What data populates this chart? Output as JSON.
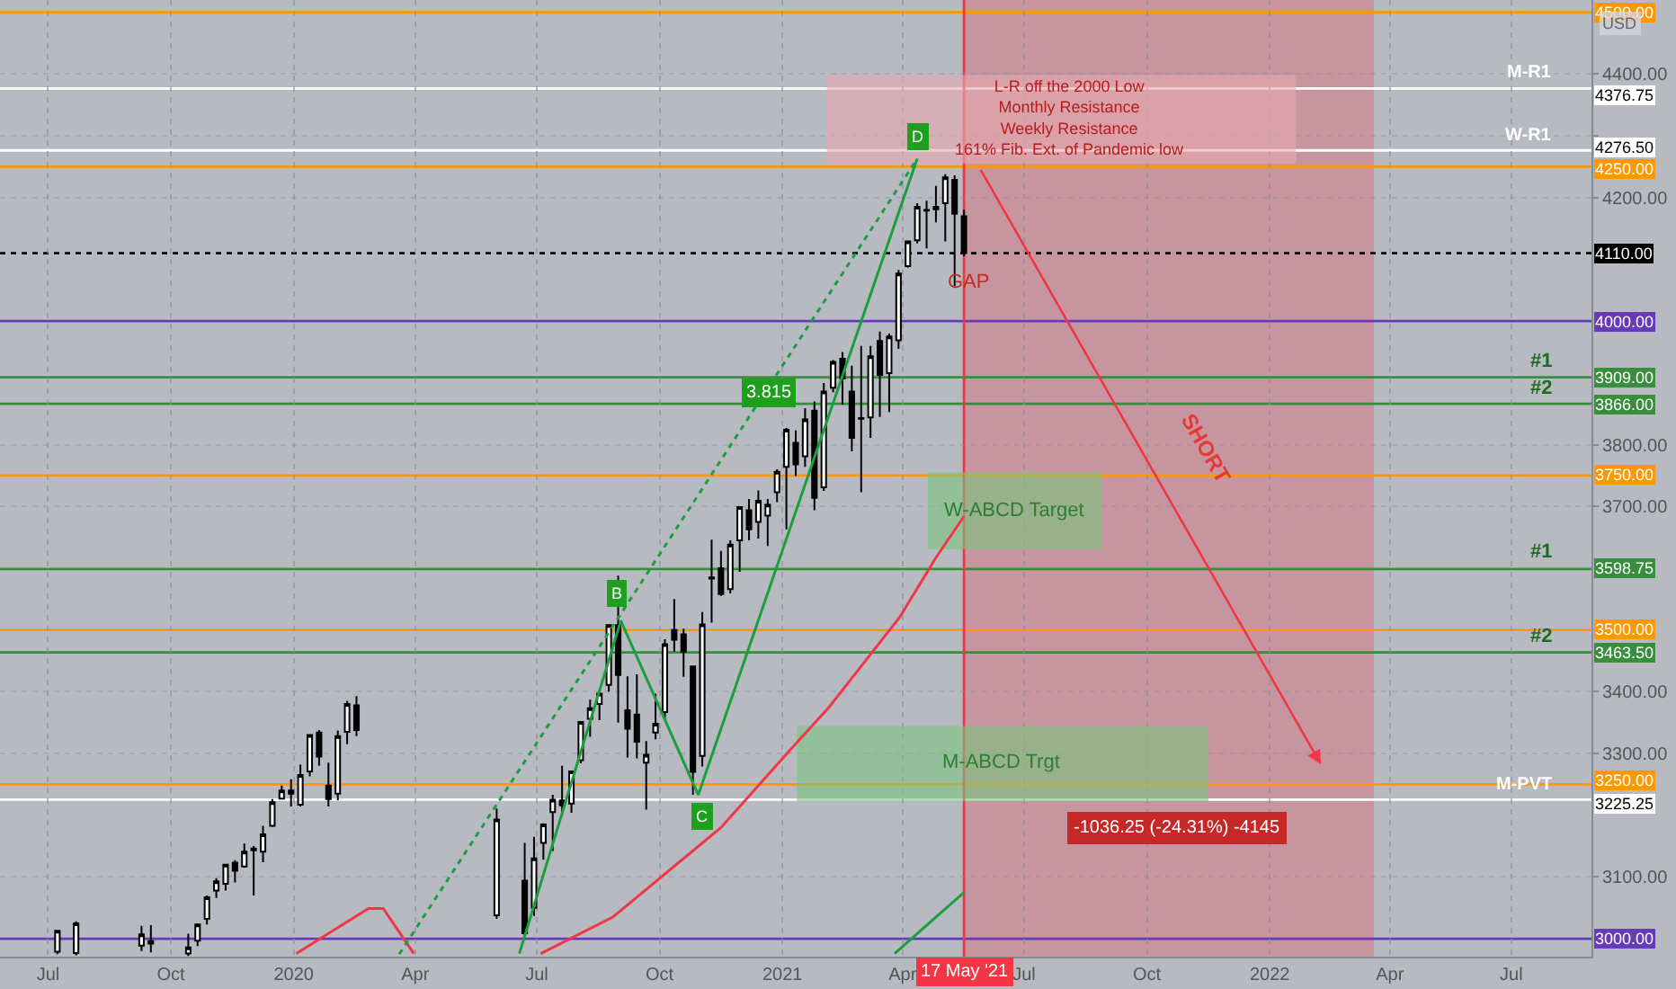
{
  "chart_data": {
    "type": "candlestick",
    "x": [
      "2019-07-08",
      "2019-07-22",
      "2019-09-09",
      "2019-09-16",
      "2019-10-14",
      "2019-10-21",
      "2019-10-28",
      "2019-11-04",
      "2019-11-11",
      "2019-11-18",
      "2019-11-25",
      "2019-12-02",
      "2019-12-09",
      "2019-12-16",
      "2019-12-23",
      "2019-12-30",
      "2020-01-06",
      "2020-01-13",
      "2020-01-20",
      "2020-01-27",
      "2020-02-03",
      "2020-02-10",
      "2020-02-17",
      "2020-06-01",
      "2020-06-22",
      "2020-06-29",
      "2020-07-06",
      "2020-07-13",
      "2020-07-20",
      "2020-07-27",
      "2020-08-03",
      "2020-08-10",
      "2020-08-17",
      "2020-08-24",
      "2020-08-31",
      "2020-09-07",
      "2020-09-14",
      "2020-09-21",
      "2020-09-28",
      "2020-10-05",
      "2020-10-12",
      "2020-10-19",
      "2020-10-26",
      "2020-11-02",
      "2020-11-09",
      "2020-11-16",
      "2020-11-23",
      "2020-11-30",
      "2020-12-07",
      "2020-12-14",
      "2020-12-21",
      "2020-12-28",
      "2021-01-04",
      "2021-01-11",
      "2021-01-18",
      "2021-01-25",
      "2021-02-01",
      "2021-02-08",
      "2021-02-15",
      "2021-02-22",
      "2021-03-01",
      "2021-03-08",
      "2021-03-15",
      "2021-03-22",
      "2021-03-29",
      "2021-04-05",
      "2021-04-12",
      "2021-04-19",
      "2021-04-26",
      "2021-05-03",
      "2021-05-10",
      "2021-05-17"
    ],
    "ohlc": [
      [
        2979,
        3014,
        2975,
        3013
      ],
      [
        2977,
        3028,
        2973,
        3025
      ],
      [
        2989,
        3021,
        2980,
        3007
      ],
      [
        2996,
        3022,
        2978,
        2992
      ],
      [
        2976,
        3008,
        2972,
        2986
      ],
      [
        2997,
        3025,
        2988,
        3023
      ],
      [
        3032,
        3070,
        3023,
        3067
      ],
      [
        3078,
        3098,
        3066,
        3093
      ],
      [
        3089,
        3121,
        3078,
        3120
      ],
      [
        3123,
        3127,
        3091,
        3110
      ],
      [
        3117,
        3154,
        3115,
        3141
      ],
      [
        3143,
        3150,
        3070,
        3146
      ],
      [
        3141,
        3183,
        3124,
        3169
      ],
      [
        3183,
        3226,
        3181,
        3221
      ],
      [
        3227,
        3248,
        3226,
        3240
      ],
      [
        3240,
        3258,
        3214,
        3235
      ],
      [
        3217,
        3282,
        3214,
        3265
      ],
      [
        3271,
        3330,
        3263,
        3330
      ],
      [
        3334,
        3338,
        3280,
        3295
      ],
      [
        3248,
        3285,
        3214,
        3226
      ],
      [
        3235,
        3337,
        3224,
        3328
      ],
      [
        3335,
        3385,
        3315,
        3380
      ],
      [
        3378,
        3393,
        3328,
        3338
      ],
      [
        3038,
        3211,
        3032,
        3193
      ],
      [
        3094,
        3155,
        3004,
        3009
      ],
      [
        3050,
        3165,
        3037,
        3130
      ],
      [
        3155,
        3187,
        3128,
        3185
      ],
      [
        3205,
        3233,
        3142,
        3225
      ],
      [
        3224,
        3280,
        3199,
        3216
      ],
      [
        3219,
        3272,
        3204,
        3271
      ],
      [
        3289,
        3352,
        3284,
        3351
      ],
      [
        3356,
        3387,
        3327,
        3373
      ],
      [
        3380,
        3399,
        3354,
        3397
      ],
      [
        3411,
        3509,
        3400,
        3508
      ],
      [
        3508,
        3588,
        3350,
        3427
      ],
      [
        3370,
        3425,
        3293,
        3340
      ],
      [
        3363,
        3428,
        3292,
        3319
      ],
      [
        3285,
        3320,
        3209,
        3298
      ],
      [
        3334,
        3397,
        3323,
        3348
      ],
      [
        3367,
        3485,
        3354,
        3477
      ],
      [
        3500,
        3550,
        3465,
        3484
      ],
      [
        3493,
        3502,
        3424,
        3465
      ],
      [
        3441,
        3441,
        3233,
        3270
      ],
      [
        3296,
        3529,
        3279,
        3509
      ],
      [
        3583,
        3646,
        3512,
        3585
      ],
      [
        3600,
        3628,
        3555,
        3558
      ],
      [
        3566,
        3645,
        3559,
        3638
      ],
      [
        3645,
        3699,
        3594,
        3699
      ],
      [
        3694,
        3712,
        3645,
        3663
      ],
      [
        3675,
        3726,
        3648,
        3709
      ],
      [
        3685,
        3712,
        3636,
        3703
      ],
      [
        3723,
        3760,
        3707,
        3756
      ],
      [
        3764,
        3827,
        3663,
        3824
      ],
      [
        3803,
        3823,
        3749,
        3768
      ],
      [
        3781,
        3859,
        3764,
        3841
      ],
      [
        3855,
        3870,
        3694,
        3714
      ],
      [
        3731,
        3900,
        3725,
        3886
      ],
      [
        3892,
        3937,
        3885,
        3934
      ],
      [
        3939,
        3950,
        3865,
        3907
      ],
      [
        3886,
        3928,
        3789,
        3811
      ],
      [
        3843,
        3960,
        3723,
        3842
      ],
      [
        3844,
        3960,
        3811,
        3943
      ],
      [
        3968,
        3983,
        3845,
        3913
      ],
      [
        3916,
        3980,
        3853,
        3975
      ],
      [
        3969,
        4083,
        3955,
        4077
      ],
      [
        4089,
        4129,
        4087,
        4129
      ],
      [
        4131,
        4191,
        4126,
        4185
      ],
      [
        4179,
        4195,
        4118,
        4180
      ],
      [
        4185,
        4219,
        4160,
        4181
      ],
      [
        4191,
        4238,
        4129,
        4233
      ],
      [
        4229,
        4236,
        4057,
        4174
      ],
      [
        4170,
        4180,
        4105,
        4110
      ]
    ],
    "series": [
      {
        "type": "line",
        "color": "#f23645",
        "x": [
          "2020-01-03",
          "2020-02-26",
          "2020-03-08",
          "2020-03-31"
        ],
        "values": [
          2976,
          3049,
          3049,
          2976
        ]
      },
      {
        "type": "line",
        "color": "#f23645",
        "x": [
          "2020-07-04",
          "2020-08-27",
          "2020-11-16",
          "2021-01-09",
          "2021-02-05",
          "2021-03-30",
          "2021-04-26",
          "2021-05-17"
        ],
        "values": [
          2976,
          3035,
          3180,
          3311,
          3375,
          3521,
          3617,
          3684
        ]
      },
      {
        "type": "line",
        "color": "#1b9e3e",
        "x": [
          "2021-03-26",
          "2021-05-17"
        ],
        "values": [
          2976,
          3075
        ]
      },
      {
        "type": "line",
        "color": "#1b9e3e",
        "x": [
          "2020-06-18",
          "2020-09-02",
          "2020-10-30",
          "2021-04-12"
        ],
        "values": [
          2976,
          3515,
          3233,
          4263
        ]
      },
      {
        "type": "line",
        "color": "#1b9e3e",
        "line_style": "dotted",
        "x": [
          "2020-03-20",
          "2021-04-12"
        ],
        "values": [
          2975,
          4263
        ]
      },
      {
        "type": "bar",
        "color": "#e9a9b0",
        "x": [
          "2021-07-29"
        ],
        "base": [
          4257
        ],
        "values": [
          140
        ]
      },
      {
        "type": "bar",
        "color": "#7cc47f",
        "x": [
          "2021-06-15"
        ],
        "base": [
          3224
        ],
        "values": [
          119
        ]
      },
      {
        "type": "bar",
        "color": "#7cc47f",
        "x": [
          "2021-06-24"
        ],
        "base": [
          3632
        ],
        "values": [
          122
        ]
      }
    ],
    "xlim": [
      "2019-05-26",
      "2022-08-30"
    ],
    "xticks": [
      {
        "value": "2019-07-01",
        "label": "Jul"
      },
      {
        "value": "2019-10-01",
        "label": "Oct"
      },
      {
        "value": "2020-01-01",
        "label": "2020"
      },
      {
        "value": "2020-04-01",
        "label": "Apr"
      },
      {
        "value": "2020-07-01",
        "label": "Jul"
      },
      {
        "value": "2020-10-01",
        "label": "Oct"
      },
      {
        "value": "2021-01-01",
        "label": "2021"
      },
      {
        "value": "2021-04-01",
        "label": "Apr"
      },
      {
        "value": "2021-07-01",
        "label": "Jul"
      },
      {
        "value": "2021-10-01",
        "label": "Oct"
      },
      {
        "value": "2022-01-01",
        "label": "2022"
      },
      {
        "value": "2022-04-01",
        "label": "Apr"
      },
      {
        "value": "2022-07-01",
        "label": "Jul"
      }
    ],
    "ylim": [
      2971,
      4520
    ],
    "yticks": [
      {
        "value": 3100,
        "label": "3100.00"
      },
      {
        "value": 3300,
        "label": "3300.00"
      },
      {
        "value": 3400,
        "label": "3400.00"
      },
      {
        "value": 3700,
        "label": "3700.00"
      },
      {
        "value": 3800,
        "label": "3800.00"
      },
      {
        "value": 4200,
        "label": "4200.00"
      },
      {
        "value": 4300,
        "label": null
      },
      {
        "value": 4400,
        "label": "4400.00"
      }
    ],
    "grid": true,
    "ref_lines": [
      {
        "axis": "y",
        "value": 4500,
        "label": "4500.00",
        "color": "#ff9800"
      },
      {
        "axis": "y",
        "value": 4376.75,
        "label": "4376.75",
        "color": "#ffffff"
      },
      {
        "axis": "y",
        "value": 4276.5,
        "label": "4276.50",
        "color": "#ffffff"
      },
      {
        "axis": "y",
        "value": 4250,
        "label": "4250.00",
        "color": "#ff9800"
      },
      {
        "axis": "y",
        "value": 4110,
        "label": "4110.00",
        "color": "#000000",
        "line_style": "dotted"
      },
      {
        "axis": "y",
        "value": 4000,
        "label": "4000.00",
        "color": "#673ab7"
      },
      {
        "axis": "y",
        "value": 3909,
        "label": "3909.00",
        "color": "#388e3c"
      },
      {
        "axis": "y",
        "value": 3866,
        "label": "3866.00",
        "color": "#388e3c"
      },
      {
        "axis": "y",
        "value": 3750,
        "label": "3750.00",
        "color": "#ff9800"
      },
      {
        "axis": "y",
        "value": 3598.75,
        "label": "3598.75",
        "color": "#388e3c"
      },
      {
        "axis": "y",
        "value": 3500,
        "label": "3500.00",
        "color": "#ff9800"
      },
      {
        "axis": "y",
        "value": 3463.5,
        "label": "3463.50",
        "color": "#388e3c"
      },
      {
        "axis": "y",
        "value": 3250,
        "label": "3250.00",
        "color": "#ff9800"
      },
      {
        "axis": "y",
        "value": 3225.25,
        "label": "3225.25",
        "color": "#ffffff"
      },
      {
        "axis": "y",
        "value": 3000,
        "label": "3000.00",
        "color": "#673ab7"
      },
      {
        "axis": "x",
        "value": "2021-05-17",
        "label": "17 May '21",
        "color": "#f23645"
      }
    ],
    "bands": [
      {
        "axis": "x",
        "from": "2021-05-17",
        "to": "2022-03-20",
        "color": "#f23645"
      }
    ],
    "annotations": [
      "L-R off the 2000 Low\nMonthly Resistance\nWeekly Resistance\n161% Fib. Ext. of Pandemic low",
      {
        "text": "GAP",
        "x": "2021-05-20",
        "y": 4062
      },
      "SHORT",
      "W-ABCD Target",
      "M-ABCD Trgt",
      "-1036.25 (-24.31%) -4145",
      {
        "text": "3.815",
        "x": "2020-12-22",
        "y": 3885
      },
      {
        "text": "B",
        "x": "2020-08-30",
        "y": 3530
      },
      {
        "text": "C",
        "x": "2020-11-02",
        "y": 3215
      },
      {
        "text": "D",
        "x": "2021-04-12",
        "y": 4263
      },
      {
        "text": "M-R1",
        "x": "2022-08-03",
        "y": 4376.75
      },
      {
        "text": "W-R1",
        "x": "2022-08-03",
        "y": 4276.5
      },
      {
        "text": "#1",
        "x": "2022-08-03",
        "y": 3909
      },
      {
        "text": "#2",
        "x": "2022-08-03",
        "y": 3866
      },
      {
        "text": "#1",
        "x": "2022-08-03",
        "y": 3598.75
      },
      {
        "text": "#2",
        "x": "2022-08-03",
        "y": 3463.5
      },
      {
        "text": "M-PVT",
        "x": "2022-08-03",
        "y": 3225.25
      },
      "USD"
    ]
  }
}
